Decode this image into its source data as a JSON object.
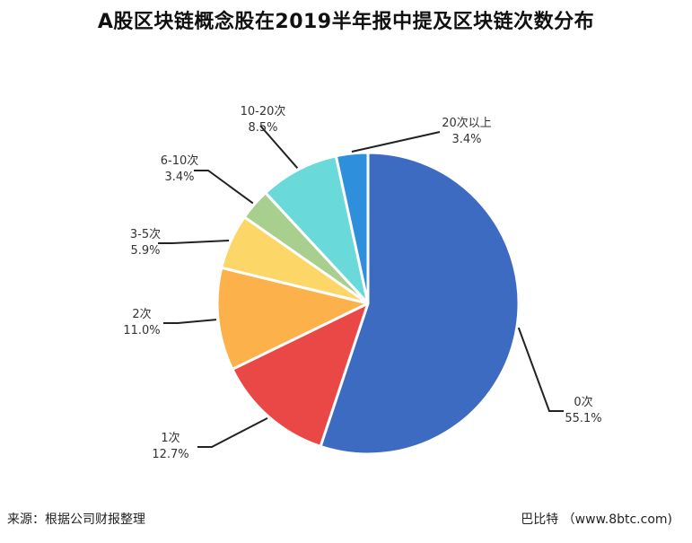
{
  "title": "A股区块链概念股在2019半年报中提及区块链次数分布",
  "footer": {
    "source": "来源：根据公司财报整理",
    "credit": "巴比特 （www.8btc.com)"
  },
  "chart_data": {
    "type": "pie",
    "title": "A股区块链概念股在2019半年报中提及区块链次数分布",
    "start": "12 o'clock",
    "direction": "clockwise",
    "slices": [
      {
        "label": "0次",
        "value": 55.1,
        "display": "55.1%",
        "color": "#3e6bc2"
      },
      {
        "label": "1次",
        "value": 12.7,
        "display": "12.7%",
        "color": "#ea4846"
      },
      {
        "label": "2次",
        "value": 11.0,
        "display": "11.0%",
        "color": "#fdb14a"
      },
      {
        "label": "3-5次",
        "value": 5.9,
        "display": "5.9%",
        "color": "#fdd668"
      },
      {
        "label": "6-10次",
        "value": 3.4,
        "display": "3.4%",
        "color": "#a8cf8e"
      },
      {
        "label": "10-20次",
        "value": 8.5,
        "display": "8.5%",
        "color": "#6ad9d9"
      },
      {
        "label": "20次以上",
        "value": 3.4,
        "display": "3.4%",
        "color": "#2e8fdd"
      }
    ]
  }
}
